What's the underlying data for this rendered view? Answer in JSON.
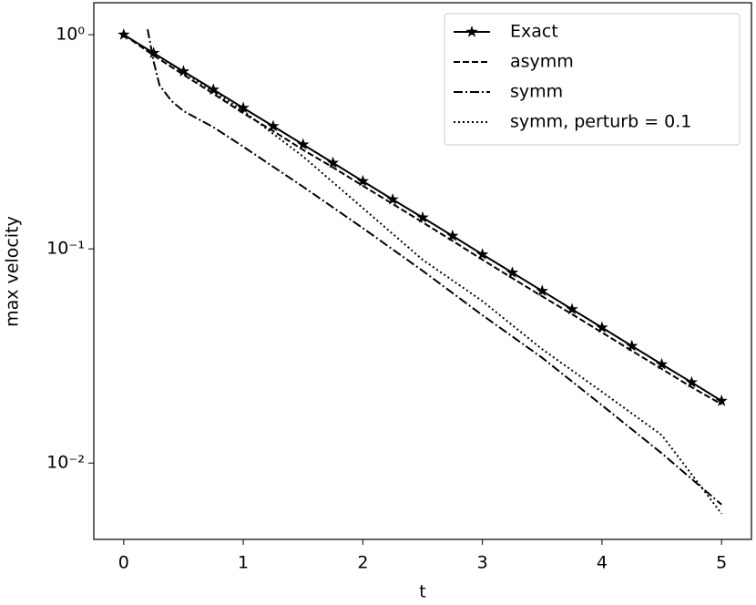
{
  "chart_data": {
    "type": "line",
    "xlabel": "t",
    "ylabel": "max velocity",
    "xlim": [
      -0.25,
      5.25
    ],
    "ylim": [
      0.0044,
      1.41
    ],
    "yscale": "log",
    "xticks": [
      0,
      1,
      2,
      3,
      4,
      5
    ],
    "yticks": [
      {
        "value": 1,
        "label": "10⁰"
      },
      {
        "value": 0.1,
        "label": "10⁻¹"
      },
      {
        "value": 0.01,
        "label": "10⁻²"
      }
    ],
    "legend": "upper right",
    "series": [
      {
        "name": "Exact",
        "color": "#000000",
        "style": "solid",
        "marker": "star",
        "x": [
          0,
          0.25,
          0.5,
          0.75,
          1,
          1.25,
          1.5,
          1.75,
          2,
          2.25,
          2.5,
          2.75,
          3,
          3.25,
          3.5,
          3.75,
          4,
          4.25,
          4.5,
          4.75,
          5
        ],
        "values": [
          1,
          0.821,
          0.674,
          0.554,
          0.455,
          0.374,
          0.307,
          0.252,
          0.207,
          0.17,
          0.14,
          0.115,
          0.0942,
          0.0774,
          0.0636,
          0.0522,
          0.0429,
          0.0352,
          0.0289,
          0.0238,
          0.0195
        ]
      },
      {
        "name": "asymm",
        "color": "#000000",
        "style": "dashed",
        "x": [
          0,
          0.25,
          0.5,
          0.75,
          1,
          1.25,
          1.5,
          1.75,
          2,
          2.25,
          2.5,
          2.75,
          3,
          3.25,
          3.5,
          3.75,
          4,
          4.25,
          4.5,
          4.75,
          5
        ],
        "values": [
          1,
          0.8,
          0.65,
          0.53,
          0.43,
          0.355,
          0.29,
          0.24,
          0.197,
          0.162,
          0.133,
          0.109,
          0.089,
          0.073,
          0.06,
          0.0495,
          0.0407,
          0.0334,
          0.0275,
          0.0226,
          0.0188
        ]
      },
      {
        "name": "symm",
        "color": "#000000",
        "style": "dashdot",
        "x": [
          0.2,
          0.25,
          0.3,
          0.4,
          0.5,
          0.75,
          1,
          1.5,
          2,
          2.5,
          3,
          3.5,
          4,
          4.5,
          5
        ],
        "values": [
          1.06,
          0.75,
          0.58,
          0.49,
          0.44,
          0.37,
          0.3,
          0.195,
          0.125,
          0.079,
          0.049,
          0.031,
          0.0186,
          0.0111,
          0.0064
        ]
      },
      {
        "name": "symm, perturb = 0.1",
        "color": "#000000",
        "style": "dotted",
        "x": [
          0,
          0.5,
          1,
          1.5,
          2,
          2.5,
          3,
          3.5,
          4,
          4.5,
          5
        ],
        "values": [
          1,
          0.67,
          0.44,
          0.27,
          0.155,
          0.089,
          0.057,
          0.034,
          0.0215,
          0.0135,
          0.0058
        ]
      }
    ]
  }
}
